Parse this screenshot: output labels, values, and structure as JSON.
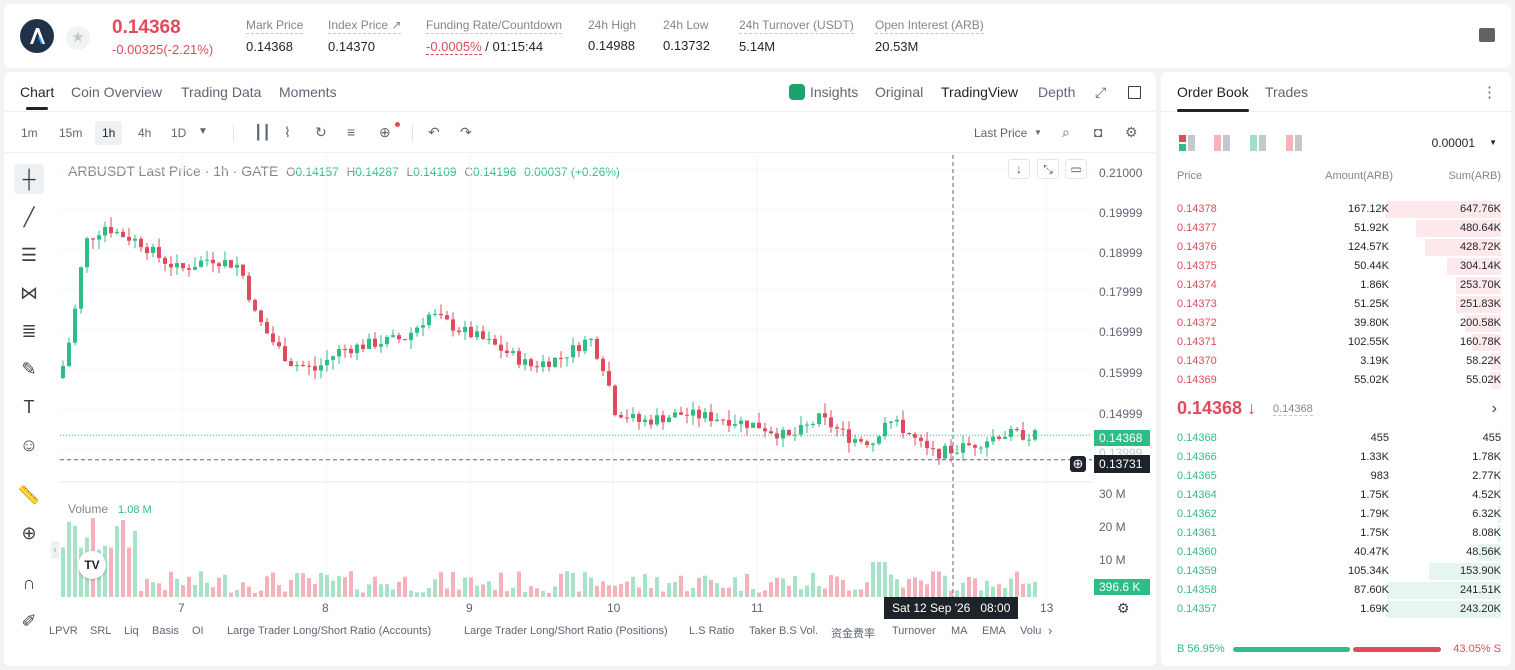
{
  "header": {
    "last_price": "0.14368",
    "change": "-0.00325(-2.21%)",
    "stats": [
      {
        "label": "Mark Price",
        "value": "0.14368"
      },
      {
        "label": "Index Price ↗",
        "value": "0.14370"
      },
      {
        "label": "Funding Rate/Countdown",
        "value_red": "-0.0005%",
        "value": " / 01:15:44"
      },
      {
        "label": "24h High",
        "value": "0.14988"
      },
      {
        "label": "24h Low",
        "value": "0.13732"
      },
      {
        "label": "24h Turnover (USDT)",
        "value": "5.14M"
      },
      {
        "label": "Open Interest (ARB)",
        "value": "20.53M"
      }
    ]
  },
  "chart_tabs": [
    "Chart",
    "Coin Overview",
    "Trading Data",
    "Moments"
  ],
  "view_tabs": [
    "Insights",
    "Original",
    "TradingView",
    "Depth"
  ],
  "timeframes": [
    "1m",
    "15m",
    "1h",
    "4h",
    "1D"
  ],
  "price_type": "Last Price",
  "ohlc": {
    "symbol": "ARBUSDT Last Price · 1h · GATE",
    "o_label": "O",
    "o": "0.14157",
    "h_label": "H",
    "h": "0.14287",
    "l_label": "L",
    "l": "0.14109",
    "c_label": "C",
    "c": "0.14196",
    "chg": "0.00037 (+0.26%)"
  },
  "price_axis": [
    "0.21000",
    "0.19999",
    "0.18999",
    "0.17999",
    "0.16999",
    "0.15999",
    "0.14999",
    "0.13999"
  ],
  "price_tags": {
    "current": "0.14368",
    "crosshair": "0.13731"
  },
  "volume": {
    "label": "Volume",
    "value": "1.08 M",
    "axis": [
      "30 M",
      "20 M",
      "10 M"
    ],
    "tag": "396.6 K"
  },
  "time_axis": [
    "7",
    "8",
    "9",
    "10",
    "11",
    "13"
  ],
  "crosshair_time": "Sat 12 Sep '26   08:00",
  "bottom_tools": [
    "LPVR",
    "SRL",
    "Liq",
    "Basis",
    "OI",
    "Large Trader Long/Short Ratio (Accounts)",
    "Large Trader Long/Short Ratio (Positions)",
    "L.S Ratio",
    "Taker B.S Vol.",
    "资金费率",
    "Turnover",
    "MA",
    "EMA",
    "Volu"
  ],
  "orderbook": {
    "tabs": [
      "Order Book",
      "Trades"
    ],
    "precision": "0.00001",
    "headers": {
      "price": "Price",
      "amount": "Amount(ARB)",
      "sum": "Sum(ARB)"
    },
    "asks": [
      {
        "price": "0.14378",
        "amount": "167.12K",
        "sum": "647.76K",
        "depth": 1.0
      },
      {
        "price": "0.14377",
        "amount": "51.92K",
        "sum": "480.64K",
        "depth": 0.74
      },
      {
        "price": "0.14376",
        "amount": "124.57K",
        "sum": "428.72K",
        "depth": 0.66
      },
      {
        "price": "0.14375",
        "amount": "50.44K",
        "sum": "304.14K",
        "depth": 0.47
      },
      {
        "price": "0.14374",
        "amount": "1.86K",
        "sum": "253.70K",
        "depth": 0.39
      },
      {
        "price": "0.14373",
        "amount": "51.25K",
        "sum": "251.83K",
        "depth": 0.39
      },
      {
        "price": "0.14372",
        "amount": "39.80K",
        "sum": "200.58K",
        "depth": 0.31
      },
      {
        "price": "0.14371",
        "amount": "102.55K",
        "sum": "160.78K",
        "depth": 0.25
      },
      {
        "price": "0.14370",
        "amount": "3.19K",
        "sum": "58.22K",
        "depth": 0.09
      },
      {
        "price": "0.14369",
        "amount": "55.02K",
        "sum": "55.02K",
        "depth": 0.085
      }
    ],
    "mid_price": "0.14368 ↓",
    "mid_sub": "0.14368",
    "bids": [
      {
        "price": "0.14368",
        "amount": "455",
        "sum": "455",
        "depth": 0.002
      },
      {
        "price": "0.14366",
        "amount": "1.33K",
        "sum": "1.78K",
        "depth": 0.007
      },
      {
        "price": "0.14365",
        "amount": "983",
        "sum": "2.77K",
        "depth": 0.011
      },
      {
        "price": "0.14364",
        "amount": "1.75K",
        "sum": "4.52K",
        "depth": 0.018
      },
      {
        "price": "0.14362",
        "amount": "1.79K",
        "sum": "6.32K",
        "depth": 0.026
      },
      {
        "price": "0.14361",
        "amount": "1.75K",
        "sum": "8.08K",
        "depth": 0.033
      },
      {
        "price": "0.14360",
        "amount": "40.47K",
        "sum": "48.56K",
        "depth": 0.2
      },
      {
        "price": "0.14359",
        "amount": "105.34K",
        "sum": "153.90K",
        "depth": 0.63
      },
      {
        "price": "0.14358",
        "amount": "87.60K",
        "sum": "241.51K",
        "depth": 0.99
      },
      {
        "price": "0.14357",
        "amount": "1.69K",
        "sum": "243.20K",
        "depth": 1.0
      }
    ],
    "buy_ratio": "B 56.95%",
    "sell_ratio": "43.05% S",
    "buy_fraction": 0.5695
  },
  "colors": {
    "up": "#2ebd85",
    "down": "#e04b5c"
  }
}
